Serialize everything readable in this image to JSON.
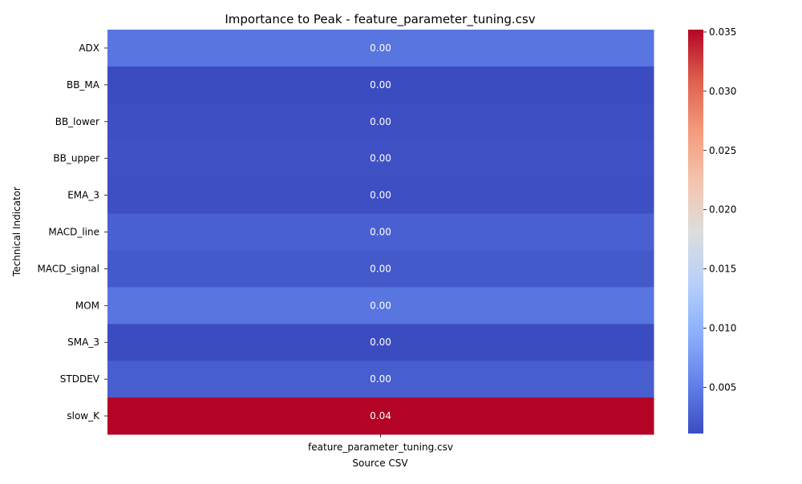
{
  "chart_data": {
    "type": "heatmap",
    "title": "Importance to Peak - feature_parameter_tuning.csv",
    "xlabel": "Source CSV",
    "ylabel": "Technical Indicator",
    "columns": [
      "feature_parameter_tuning.csv"
    ],
    "rows": [
      "ADX",
      "BB_MA",
      "BB_lower",
      "BB_upper",
      "EMA_3",
      "MACD_line",
      "MACD_signal",
      "MOM",
      "SMA_3",
      "STDDEV",
      "slow_K"
    ],
    "values": [
      [
        0.0043
      ],
      [
        0.0011
      ],
      [
        0.0013
      ],
      [
        0.0015
      ],
      [
        0.0013
      ],
      [
        0.0027
      ],
      [
        0.0021
      ],
      [
        0.0043
      ],
      [
        0.0011
      ],
      [
        0.0025
      ],
      [
        0.0352
      ]
    ],
    "annotations": [
      "0.00",
      "0.00",
      "0.00",
      "0.00",
      "0.00",
      "0.00",
      "0.00",
      "0.00",
      "0.00",
      "0.00",
      "0.04"
    ],
    "colormap": "coolwarm",
    "colorbar": {
      "vmin": 0.0011,
      "vmax": 0.0352,
      "ticks": [
        0.005,
        0.01,
        0.015,
        0.02,
        0.025,
        0.03,
        0.035
      ],
      "tick_labels": [
        "0.005",
        "0.010",
        "0.015",
        "0.020",
        "0.025",
        "0.030",
        "0.035"
      ]
    },
    "grid": false,
    "legend": "colorbar at right"
  }
}
